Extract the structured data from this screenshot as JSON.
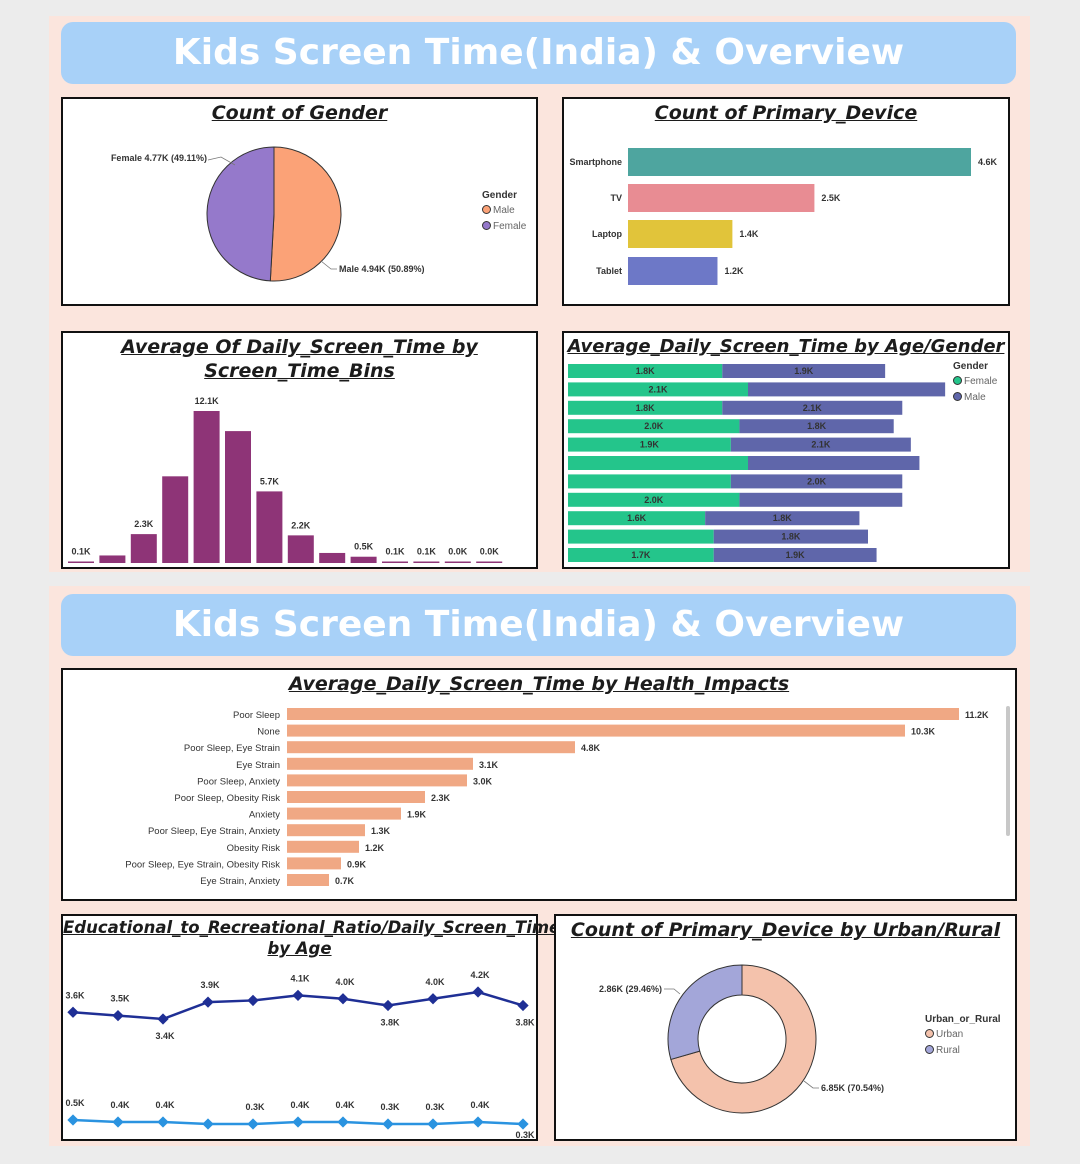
{
  "dashboard_title": "Kids Screen Time(India) & Overview",
  "gender_pie": {
    "title": "Count of Gender",
    "legend_title": "Gender",
    "chart_data": {
      "type": "pie",
      "slices": [
        {
          "name": "Male",
          "value": 4.94,
          "label": "Male 4.94K (50.89%)",
          "color": "#fba277"
        },
        {
          "name": "Female",
          "value": 4.77,
          "label": "Female 4.77K (49.11%)",
          "color": "#9579cb"
        }
      ]
    }
  },
  "device_bar": {
    "title": "Count of Primary_Device",
    "chart_data": {
      "type": "bar",
      "orientation": "horizontal",
      "categories": [
        "Smartphone",
        "TV",
        "Laptop",
        "Tablet"
      ],
      "values": [
        4.6,
        2.5,
        1.4,
        1.2
      ],
      "labels": [
        "4.6K",
        "2.5K",
        "1.4K",
        "1.2K"
      ],
      "colors": [
        "#4ea59f",
        "#e88c93",
        "#e1c43a",
        "#6d78c7"
      ]
    }
  },
  "bins_bar": {
    "title_line1": "Average Of Daily_Screen_Time by",
    "title_line2": "Screen_Time_Bins",
    "chart_data": {
      "type": "bar",
      "values": [
        0.1,
        0.6,
        2.3,
        6.9,
        12.1,
        10.5,
        5.7,
        2.2,
        0.8,
        0.5,
        0.1,
        0.1,
        0.0,
        0.0
      ],
      "labels": [
        "0.1K",
        "",
        "2.3K",
        "",
        "12.1K",
        "",
        "5.7K",
        "2.2K",
        "",
        "0.5K",
        "0.1K",
        "0.1K",
        "0.0K",
        "0.0K"
      ],
      "color": "#8e3477"
    }
  },
  "age_gender": {
    "title": "Average_Daily_Screen_Time by Age/Gender",
    "legend_title": "Gender",
    "chart_data": {
      "type": "bar",
      "stacked": true,
      "orientation": "horizontal",
      "series": [
        {
          "name": "Female",
          "color": "#24c58b",
          "values": [
            1.8,
            2.1,
            1.8,
            2.0,
            1.9,
            2.1,
            1.9,
            2.0,
            1.6,
            1.7,
            1.7
          ],
          "labels": [
            "1.8K",
            "2.1K",
            "1.8K",
            "2.0K",
            "1.9K",
            "",
            "",
            "2.0K",
            "1.6K",
            "",
            "1.7K"
          ]
        },
        {
          "name": "Male",
          "color": "#5f66aa",
          "values": [
            1.9,
            2.3,
            2.1,
            1.8,
            2.1,
            2.0,
            2.0,
            1.9,
            1.8,
            1.8,
            1.9
          ],
          "labels": [
            "1.9K",
            "",
            "2.1K",
            "1.8K",
            "2.1K",
            "",
            "2.0K",
            "",
            "1.8K",
            "1.8K",
            "1.9K"
          ]
        }
      ]
    }
  },
  "health": {
    "title": "Average_Daily_Screen_Time by Health_Impacts",
    "chart_data": {
      "type": "bar",
      "orientation": "horizontal",
      "color": "#f0a884",
      "categories": [
        "Poor Sleep",
        "None",
        "Poor Sleep, Eye Strain",
        "Eye Strain",
        "Poor Sleep, Anxiety",
        "Poor Sleep, Obesity Risk",
        "Anxiety",
        "Poor Sleep, Eye Strain, Anxiety",
        "Obesity Risk",
        "Poor Sleep, Eye Strain, Obesity Risk",
        "Eye Strain, Anxiety"
      ],
      "values": [
        11.2,
        10.3,
        4.8,
        3.1,
        3.0,
        2.3,
        1.9,
        1.3,
        1.2,
        0.9,
        0.7
      ],
      "labels": [
        "11.2K",
        "10.3K",
        "4.8K",
        "3.1K",
        "3.0K",
        "2.3K",
        "1.9K",
        "1.3K",
        "1.2K",
        "0.9K",
        "0.7K"
      ]
    }
  },
  "ratio_line": {
    "title_line1": "Educational_to_Recreational_Ratio/Daily_Screen_Time",
    "title_line2": "by Age",
    "chart_data": {
      "type": "line",
      "series": [
        {
          "color": "#1f2f95",
          "values": [
            3.6,
            3.5,
            3.4,
            3.9,
            3.95,
            4.1,
            4.0,
            3.8,
            4.0,
            4.2,
            3.8
          ],
          "labels": [
            "3.6K",
            "3.5K",
            "3.4K",
            "3.9K",
            "",
            "4.1K",
            "4.0K",
            "3.8K",
            "4.0K",
            "4.2K",
            "3.8K"
          ]
        },
        {
          "color": "#2a93e0",
          "values": [
            0.5,
            0.4,
            0.4,
            0.3,
            0.3,
            0.4,
            0.4,
            0.3,
            0.3,
            0.4,
            0.3
          ],
          "labels": [
            "0.5K",
            "0.4K",
            "0.4K",
            "",
            "0.3K",
            "0.4K",
            "0.4K",
            "0.3K",
            "0.3K",
            "0.4K",
            "0.3K"
          ]
        }
      ]
    }
  },
  "urban_donut": {
    "title": "Count of Primary_Device by Urban/Rural",
    "legend_title": "Urban_or_Rural",
    "chart_data": {
      "type": "pie",
      "donut": true,
      "slices": [
        {
          "name": "Urban",
          "value": 6.85,
          "label": "6.85K (70.54%)",
          "color": "#f4c2ac"
        },
        {
          "name": "Rural",
          "value": 2.86,
          "label": "2.86K (29.46%)",
          "color": "#a3a6d9"
        }
      ]
    }
  }
}
